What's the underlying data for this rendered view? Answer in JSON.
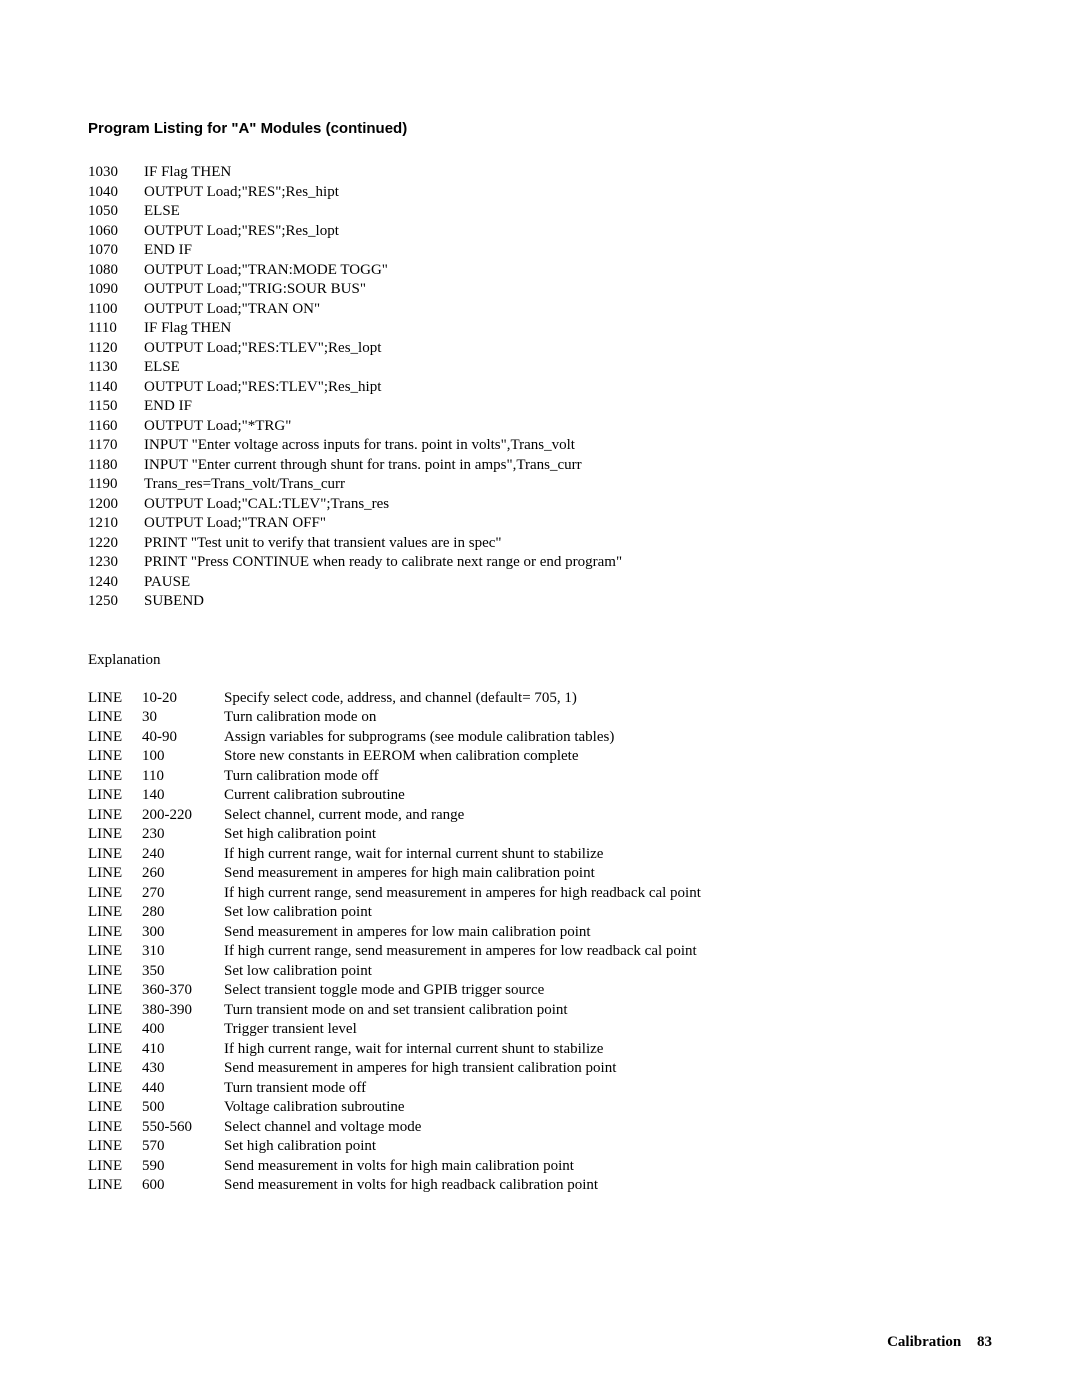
{
  "title": "Program Listing for \"A\" Modules (continued)",
  "code": [
    {
      "no": "1030",
      "t": "IF Flag THEN"
    },
    {
      "no": "1040",
      "t": "OUTPUT Load;\"RES\";Res_hipt"
    },
    {
      "no": "1050",
      "t": "ELSE"
    },
    {
      "no": "1060",
      "t": "OUTPUT Load;\"RES\";Res_lopt"
    },
    {
      "no": "1070",
      "t": "END IF"
    },
    {
      "no": "1080",
      "t": "OUTPUT Load;\"TRAN:MODE TOGG\""
    },
    {
      "no": "1090",
      "t": "OUTPUT Load;\"TRIG:SOUR BUS\""
    },
    {
      "no": "1100",
      "t": "OUTPUT Load;\"TRAN ON\""
    },
    {
      "no": "1110",
      "t": "IF Flag THEN"
    },
    {
      "no": "1120",
      "t": "OUTPUT Load;\"RES:TLEV\";Res_lopt"
    },
    {
      "no": "1130",
      "t": "ELSE"
    },
    {
      "no": "1140",
      "t": "OUTPUT Load;\"RES:TLEV\";Res_hipt"
    },
    {
      "no": "1150",
      "t": "END IF"
    },
    {
      "no": "1160",
      "t": "OUTPUT Load;\"*TRG\""
    },
    {
      "no": "1170",
      "t": "INPUT \"Enter voltage across inputs for trans. point in volts\",Trans_volt"
    },
    {
      "no": "1180",
      "t": "INPUT \"Enter current through shunt for trans. point in amps\",Trans_curr"
    },
    {
      "no": "1190",
      "t": "Trans_res=Trans_volt/Trans_curr"
    },
    {
      "no": "1200",
      "t": "OUTPUT Load;\"CAL:TLEV\";Trans_res"
    },
    {
      "no": "1210",
      "t": "OUTPUT Load;\"TRAN OFF\""
    },
    {
      "no": "1220",
      "t": "PRINT \"Test unit to verify that transient values are in spec\""
    },
    {
      "no": "1230",
      "t": "PRINT \"Press CONTINUE when ready to calibrate next range or end program\""
    },
    {
      "no": "1240",
      "t": "PAUSE"
    },
    {
      "no": "1250",
      "t": "SUBEND"
    }
  ],
  "explanation_heading": "Explanation",
  "line_label": "LINE",
  "explanation": [
    {
      "r": "10-20",
      "d": "Specify select code, address, and channel (default= 705, 1)"
    },
    {
      "r": "30",
      "d": "Turn calibration mode on"
    },
    {
      "r": "40-90",
      "d": "Assign variables for subprograms (see module calibration tables)"
    },
    {
      "r": "100",
      "d": "Store new constants in EEROM when calibration complete"
    },
    {
      "r": "110",
      "d": "Turn calibration mode off"
    },
    {
      "r": "140",
      "d": "Current calibration subroutine"
    },
    {
      "r": "200-220",
      "d": "Select channel, current mode, and range"
    },
    {
      "r": "230",
      "d": "Set high calibration point"
    },
    {
      "r": "240",
      "d": "If high current range, wait for internal current shunt to stabilize"
    },
    {
      "r": "260",
      "d": "Send measurement in amperes for high main calibration point"
    },
    {
      "r": "270",
      "d": "If high current range, send measurement in amperes for high readback cal point"
    },
    {
      "r": "280",
      "d": "Set low calibration point"
    },
    {
      "r": "300",
      "d": "Send measurement in amperes for low main calibration point"
    },
    {
      "r": "310",
      "d": "If high current range, send measurement in amperes for low readback cal point"
    },
    {
      "r": "350",
      "d": "Set low calibration point"
    },
    {
      "r": "360-370",
      "d": "Select transient toggle mode and GPIB trigger source"
    },
    {
      "r": "380-390",
      "d": "Turn transient mode on and set transient calibration point"
    },
    {
      "r": "400",
      "d": "Trigger transient level"
    },
    {
      "r": "410",
      "d": "If high current range, wait for internal current shunt to stabilize"
    },
    {
      "r": "430",
      "d": "Send measurement in amperes for high transient calibration point"
    },
    {
      "r": "440",
      "d": "Turn transient mode off"
    },
    {
      "r": "500",
      "d": "Voltage calibration subroutine"
    },
    {
      "r": "550-560",
      "d": "Select channel and voltage mode"
    },
    {
      "r": "570",
      "d": "Set high calibration point"
    },
    {
      "r": "590",
      "d": "Send measurement in volts for high main calibration point"
    },
    {
      "r": "600",
      "d": "Send measurement in volts for high readback calibration point"
    }
  ],
  "footer_label": "Calibration",
  "footer_page": "83"
}
